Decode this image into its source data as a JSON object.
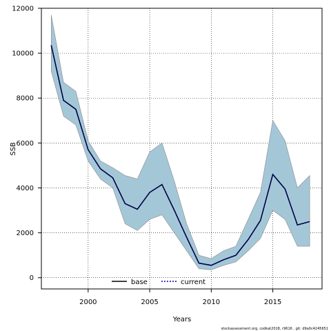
{
  "chart_data": {
    "type": "area",
    "title": "",
    "xlabel": "Years",
    "ylabel": "SSB",
    "xlim": [
      1996.2,
      2019.0
    ],
    "ylim": [
      -500,
      12000
    ],
    "x_ticks": [
      2000,
      2005,
      2010,
      2015
    ],
    "y_ticks": [
      0,
      2000,
      4000,
      6000,
      8000,
      10000,
      12000
    ],
    "grid": true,
    "legend_position": "bottom-center",
    "x": [
      1997,
      1998,
      1999,
      2000,
      2001,
      2002,
      2003,
      2004,
      2005,
      2006,
      2007,
      2008,
      2009,
      2010,
      2011,
      2012,
      2013,
      2014,
      2015,
      2016,
      2017,
      2018
    ],
    "band": {
      "upper": [
        11700,
        8700,
        8300,
        6100,
        5200,
        4900,
        4550,
        4400,
        5600,
        6000,
        4300,
        2400,
        1000,
        850,
        1200,
        1400,
        2600,
        3800,
        7000,
        6100,
        4000,
        4550
      ],
      "lower": [
        9200,
        7200,
        6800,
        5200,
        4400,
        4000,
        2400,
        2100,
        2600,
        2800,
        2000,
        1200,
        400,
        350,
        550,
        700,
        1200,
        1750,
        3000,
        2600,
        1400,
        1400
      ],
      "color": "#a4c7d8"
    },
    "series": [
      {
        "name": "base",
        "style": "solid",
        "color": "#000000",
        "values": [
          10350,
          7900,
          7500,
          5700,
          4850,
          4450,
          3300,
          3050,
          3800,
          4150,
          3000,
          1800,
          650,
          550,
          800,
          1000,
          1700,
          2550,
          4600,
          3950,
          2350,
          2500
        ]
      },
      {
        "name": "current",
        "style": "dotted",
        "color": "#00008b",
        "values": [
          10350,
          7900,
          7500,
          5700,
          4850,
          4450,
          3300,
          3050,
          3800,
          4150,
          3000,
          1800,
          650,
          550,
          800,
          1000,
          1700,
          2550,
          4600,
          3950,
          2350,
          2500
        ]
      }
    ]
  },
  "caption": "stockassessment.org, codkat2018, r9616 , git: d9a0c4245651"
}
